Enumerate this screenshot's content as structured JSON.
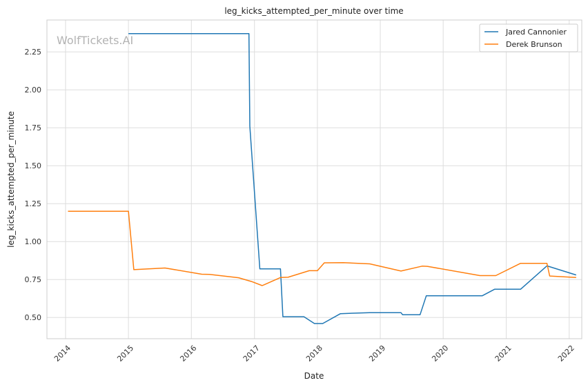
{
  "watermark": "WolfTickets.AI",
  "chart_data": {
    "type": "line",
    "title": "leg_kicks_attempted_per_minute over time",
    "xlabel": "Date",
    "ylabel": "leg_kicks_attempted_per_minute",
    "xlim": [
      "2013-09-15",
      "2022-03-15"
    ],
    "ylim": [
      0.36,
      2.46
    ],
    "x_ticks": [
      "2014",
      "2015",
      "2016",
      "2017",
      "2018",
      "2019",
      "2020",
      "2021",
      "2022"
    ],
    "y_ticks": [
      "0.50",
      "0.75",
      "1.00",
      "1.25",
      "1.50",
      "1.75",
      "2.00",
      "2.25"
    ],
    "grid": true,
    "legend_position": "top-right",
    "colors": {
      "Jared Cannonier": "#1f77b4",
      "Derek Brunson": "#ff7f0e"
    },
    "series": [
      {
        "name": "Jared Cannonier",
        "points": [
          [
            "2015-01-01",
            2.37
          ],
          [
            "2016-11-30",
            2.37
          ],
          [
            "2016-12-05",
            1.76
          ],
          [
            "2017-02-01",
            0.82
          ],
          [
            "2017-06-01",
            0.82
          ],
          [
            "2017-06-15",
            0.505
          ],
          [
            "2017-10-15",
            0.505
          ],
          [
            "2017-12-15",
            0.46
          ],
          [
            "2018-02-01",
            0.46
          ],
          [
            "2018-05-15",
            0.525
          ],
          [
            "2018-11-01",
            0.532
          ],
          [
            "2019-05-01",
            0.532
          ],
          [
            "2019-05-10",
            0.518
          ],
          [
            "2019-08-20",
            0.518
          ],
          [
            "2019-09-25",
            0.643
          ],
          [
            "2020-08-15",
            0.643
          ],
          [
            "2020-10-25",
            0.686
          ],
          [
            "2021-03-25",
            0.686
          ],
          [
            "2021-08-25",
            0.84
          ],
          [
            "2022-02-10",
            0.78
          ]
        ]
      },
      {
        "name": "Derek Brunson",
        "points": [
          [
            "2014-01-15",
            1.2
          ],
          [
            "2015-01-01",
            1.2
          ],
          [
            "2015-02-01",
            0.815
          ],
          [
            "2015-08-01",
            0.826
          ],
          [
            "2016-03-01",
            0.785
          ],
          [
            "2016-04-15",
            0.784
          ],
          [
            "2016-10-01",
            0.762
          ],
          [
            "2016-12-15",
            0.737
          ],
          [
            "2017-02-15",
            0.71
          ],
          [
            "2017-06-01",
            0.763
          ],
          [
            "2017-07-15",
            0.765
          ],
          [
            "2017-11-15",
            0.808
          ],
          [
            "2018-01-01",
            0.808
          ],
          [
            "2018-02-10",
            0.86
          ],
          [
            "2018-06-01",
            0.861
          ],
          [
            "2018-11-01",
            0.853
          ],
          [
            "2019-05-01",
            0.806
          ],
          [
            "2019-09-01",
            0.838
          ],
          [
            "2019-10-01",
            0.837
          ],
          [
            "2020-08-01",
            0.776
          ],
          [
            "2020-11-01",
            0.776
          ],
          [
            "2021-03-25",
            0.857
          ],
          [
            "2021-08-25",
            0.857
          ],
          [
            "2021-09-10",
            0.773
          ],
          [
            "2022-02-10",
            0.763
          ]
        ]
      }
    ]
  }
}
